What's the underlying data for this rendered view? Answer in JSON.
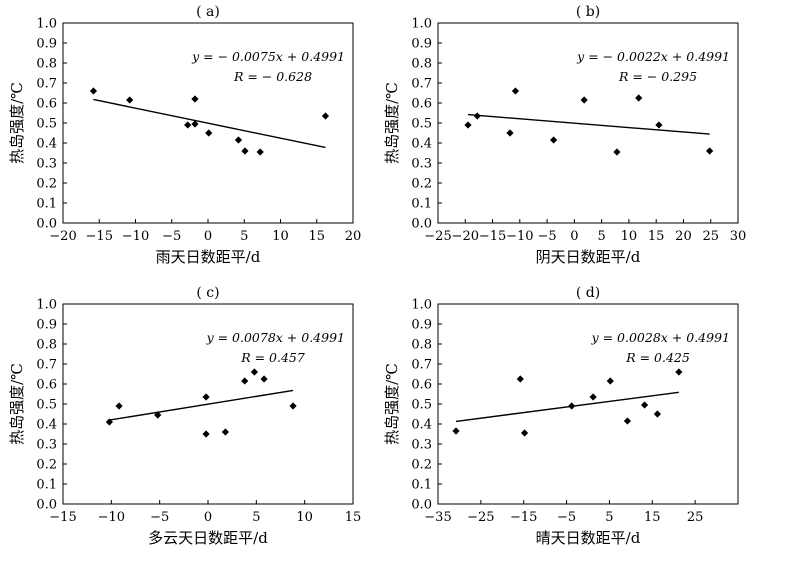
{
  "chart_data": [
    {
      "type": "scatter",
      "panel_label": "( a)",
      "xlabel": "雨天日数距平/d",
      "ylabel": "热岛强度/℃",
      "xlim": [
        -20,
        20
      ],
      "ylim": [
        0,
        1.0
      ],
      "xticks": [
        -20,
        -15,
        -10,
        -5,
        0,
        5,
        10,
        15,
        20
      ],
      "yticks": [
        0,
        0.1,
        0.2,
        0.3,
        0.4,
        0.5,
        0.6,
        0.7,
        0.8,
        0.9,
        1.0
      ],
      "points": [
        [
          -15.8,
          0.66
        ],
        [
          -10.8,
          0.615
        ],
        [
          -2.8,
          0.49
        ],
        [
          -1.8,
          0.62
        ],
        [
          -1.8,
          0.495
        ],
        [
          0.1,
          0.45
        ],
        [
          4.2,
          0.415
        ],
        [
          5.1,
          0.36
        ],
        [
          7.2,
          0.355
        ],
        [
          16.2,
          0.535
        ]
      ],
      "fit": {
        "slope": -0.0075,
        "intercept": 0.4991,
        "x_range": [
          -15.8,
          16.2
        ]
      },
      "equation": "y = − 0.0075x + 0.4991",
      "r_text": "R = − 0.628"
    },
    {
      "type": "scatter",
      "panel_label": "( b)",
      "xlabel": "阴天日数距平/d",
      "ylabel": "热岛强度/℃",
      "xlim": [
        -25,
        30
      ],
      "ylim": [
        0,
        1.0
      ],
      "xticks": [
        -25,
        -20,
        -15,
        -10,
        -5,
        0,
        5,
        10,
        15,
        20,
        25,
        30
      ],
      "yticks": [
        0,
        0.1,
        0.2,
        0.3,
        0.4,
        0.5,
        0.6,
        0.7,
        0.8,
        0.9,
        1.0
      ],
      "points": [
        [
          -19.5,
          0.49
        ],
        [
          -17.8,
          0.535
        ],
        [
          -11.8,
          0.45
        ],
        [
          -10.8,
          0.66
        ],
        [
          -3.8,
          0.415
        ],
        [
          1.8,
          0.615
        ],
        [
          7.8,
          0.355
        ],
        [
          11.8,
          0.625
        ],
        [
          15.5,
          0.49
        ],
        [
          24.8,
          0.36
        ]
      ],
      "fit": {
        "slope": -0.0022,
        "intercept": 0.4991,
        "x_range": [
          -19.5,
          24.8
        ]
      },
      "equation": "y = − 0.0022x + 0.4991",
      "r_text": "R = − 0.295"
    },
    {
      "type": "scatter",
      "panel_label": "( c)",
      "xlabel": "多云天日数距平/d",
      "ylabel": "热岛强度/℃",
      "xlim": [
        -15,
        15
      ],
      "ylim": [
        0,
        1.0
      ],
      "xticks": [
        -15,
        -10,
        -5,
        0,
        5,
        10,
        15
      ],
      "yticks": [
        0,
        0.1,
        0.2,
        0.3,
        0.4,
        0.5,
        0.6,
        0.7,
        0.8,
        0.9,
        1.0
      ],
      "points": [
        [
          -10.2,
          0.41
        ],
        [
          -9.2,
          0.49
        ],
        [
          -5.2,
          0.445
        ],
        [
          -0.2,
          0.535
        ],
        [
          -0.2,
          0.35
        ],
        [
          1.8,
          0.36
        ],
        [
          3.8,
          0.615
        ],
        [
          4.8,
          0.66
        ],
        [
          5.8,
          0.625
        ],
        [
          8.8,
          0.49
        ]
      ],
      "fit": {
        "slope": 0.0078,
        "intercept": 0.4991,
        "x_range": [
          -10.2,
          8.8
        ]
      },
      "equation": "y = 0.0078x + 0.4991",
      "r_text": "R = 0.457"
    },
    {
      "type": "scatter",
      "panel_label": "( d)",
      "xlabel": "晴天日数距平/d",
      "ylabel": "热岛强度/℃",
      "xlim": [
        -35,
        35
      ],
      "ylim": [
        0,
        1.0
      ],
      "xticks": [
        -35,
        -25,
        -15,
        -5,
        5,
        15,
        25
      ],
      "yticks": [
        0,
        0.1,
        0.2,
        0.3,
        0.4,
        0.5,
        0.6,
        0.7,
        0.8,
        0.9,
        1.0
      ],
      "points": [
        [
          -30.8,
          0.365
        ],
        [
          -15.8,
          0.625
        ],
        [
          -14.8,
          0.355
        ],
        [
          -3.8,
          0.49
        ],
        [
          1.2,
          0.535
        ],
        [
          5.2,
          0.615
        ],
        [
          9.2,
          0.415
        ],
        [
          13.2,
          0.495
        ],
        [
          16.2,
          0.45
        ],
        [
          21.2,
          0.66
        ]
      ],
      "fit": {
        "slope": 0.0028,
        "intercept": 0.4991,
        "x_range": [
          -30.8,
          21.2
        ]
      },
      "equation": "y = 0.0028x + 0.4991",
      "r_text": "R = 0.425"
    }
  ]
}
